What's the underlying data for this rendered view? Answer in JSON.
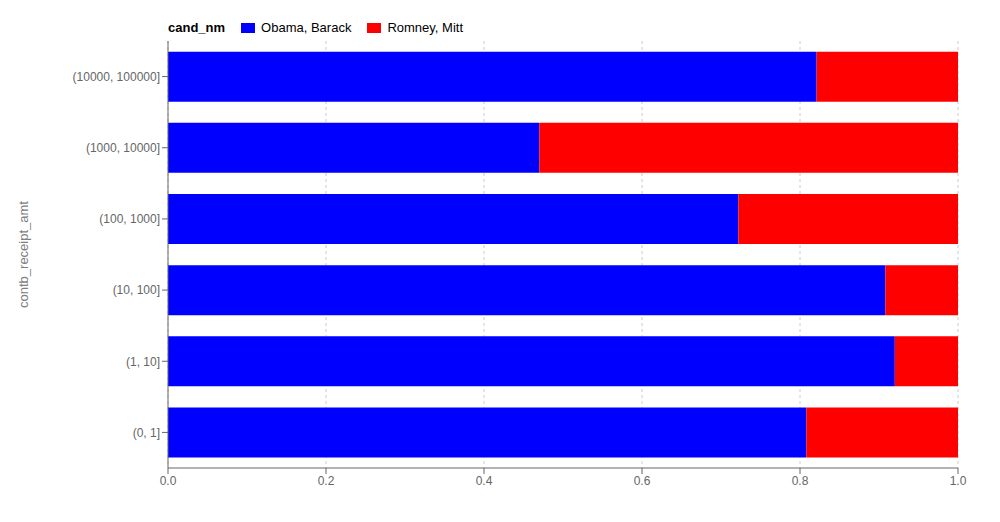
{
  "chart_data": {
    "type": "bar",
    "orientation": "horizontal",
    "stacked": true,
    "categories": [
      "(10000, 100000]",
      "(1000, 10000]",
      "(100, 1000]",
      "(10, 100]",
      "(1, 10]",
      "(0, 1]"
    ],
    "series": [
      {
        "name": "Obama, Barack",
        "color": "#0000ff",
        "values": [
          0.821,
          0.47,
          0.722,
          0.908,
          0.92,
          0.808
        ]
      },
      {
        "name": "Romney, Mitt",
        "color": "#ff0000",
        "values": [
          0.179,
          0.53,
          0.278,
          0.092,
          0.08,
          0.192
        ]
      }
    ],
    "ylabel": "contb_receipt_amt",
    "legend_title": "cand_nm",
    "legend": "upper left",
    "xlim": [
      0.0,
      1.0
    ],
    "xticks": [
      {
        "value": 0,
        "label": "0.0"
      },
      0.2,
      0.4,
      0.6,
      0.8,
      {
        "value": 1,
        "label": "1.0"
      }
    ],
    "grid": true
  }
}
